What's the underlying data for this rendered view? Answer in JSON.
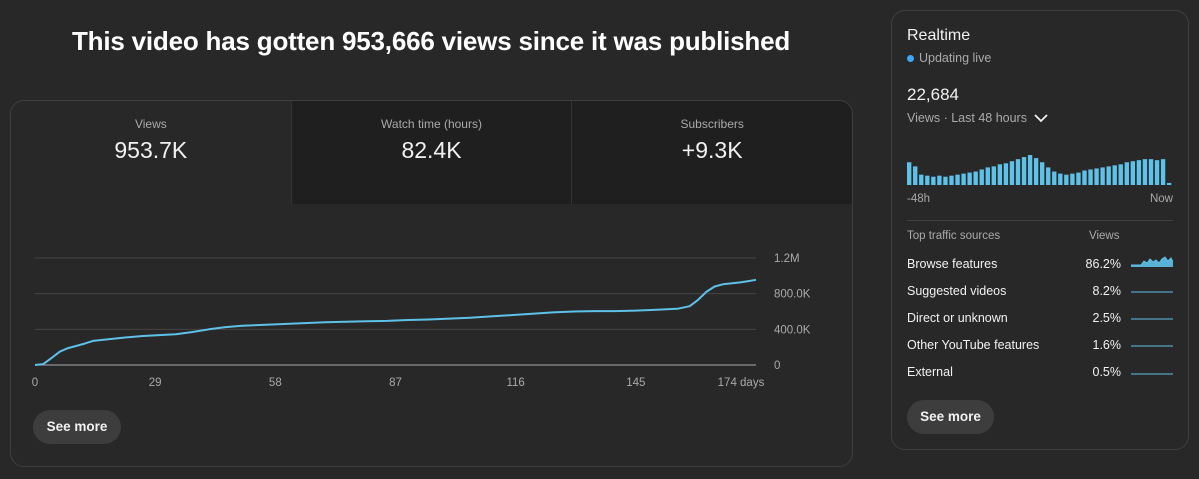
{
  "headline": "This video has gotten 953,666 views since it was published",
  "metrics": [
    {
      "label": "Views",
      "value": "953.7K"
    },
    {
      "label": "Watch time (hours)",
      "value": "82.4K"
    },
    {
      "label": "Subscribers",
      "value": "+9.3K"
    }
  ],
  "main_see_more": "See more",
  "chart_data": {
    "type": "line",
    "xlabel": "",
    "ylabel": "",
    "x_ticks": [
      "0",
      "29",
      "58",
      "87",
      "116",
      "145",
      "174 days"
    ],
    "x_tick_values": [
      0,
      29,
      58,
      87,
      116,
      145,
      174
    ],
    "y_ticks": [
      "0",
      "400.0K",
      "800.0K",
      "1.2M"
    ],
    "y_tick_values": [
      0,
      400000,
      800000,
      1200000
    ],
    "xlim": [
      0,
      174
    ],
    "ylim": [
      0,
      1200000
    ],
    "grid": true,
    "color": "#5ec1e8",
    "series": [
      {
        "x": [
          0,
          2,
          4,
          6,
          8,
          12,
          14,
          18,
          22,
          26,
          30,
          34,
          38,
          42,
          46,
          50,
          55,
          60,
          65,
          70,
          75,
          80,
          85,
          90,
          95,
          100,
          105,
          110,
          115,
          120,
          125,
          130,
          135,
          140,
          145,
          150,
          155,
          158,
          160,
          162,
          164,
          166,
          168,
          170,
          172,
          174
        ],
        "y": [
          0,
          10000,
          80000,
          150000,
          190000,
          240000,
          270000,
          290000,
          310000,
          325000,
          335000,
          345000,
          370000,
          400000,
          425000,
          440000,
          450000,
          460000,
          470000,
          480000,
          485000,
          490000,
          495000,
          505000,
          510000,
          520000,
          530000,
          545000,
          560000,
          575000,
          590000,
          600000,
          605000,
          605000,
          610000,
          620000,
          630000,
          660000,
          730000,
          820000,
          880000,
          905000,
          915000,
          925000,
          940000,
          955000
        ]
      }
    ]
  },
  "realtime": {
    "title": "Realtime",
    "live_label": "Updating live",
    "count": "22,684",
    "period": "Views · Last 48 hours",
    "axis_left": "-48h",
    "axis_right": "Now",
    "bar_color": "#5ec1e8",
    "bars": [
      22,
      18,
      10,
      9,
      8,
      9,
      8,
      9,
      10,
      11,
      12,
      13,
      15,
      17,
      18,
      20,
      21,
      23,
      25,
      27,
      29,
      26,
      22,
      17,
      13,
      11,
      10,
      11,
      12,
      14,
      15,
      16,
      17,
      18,
      19,
      20,
      22,
      23,
      24,
      25,
      25,
      24,
      25,
      2
    ],
    "sources_header": "Top traffic sources",
    "sources_col": "Views",
    "sources": [
      {
        "name": "Browse features",
        "pct": "86.2%"
      },
      {
        "name": "Suggested videos",
        "pct": "8.2%"
      },
      {
        "name": "Direct or unknown",
        "pct": "2.5%"
      },
      {
        "name": "Other YouTube features",
        "pct": "1.6%"
      },
      {
        "name": "External",
        "pct": "0.5%"
      }
    ],
    "see_more": "See more"
  }
}
